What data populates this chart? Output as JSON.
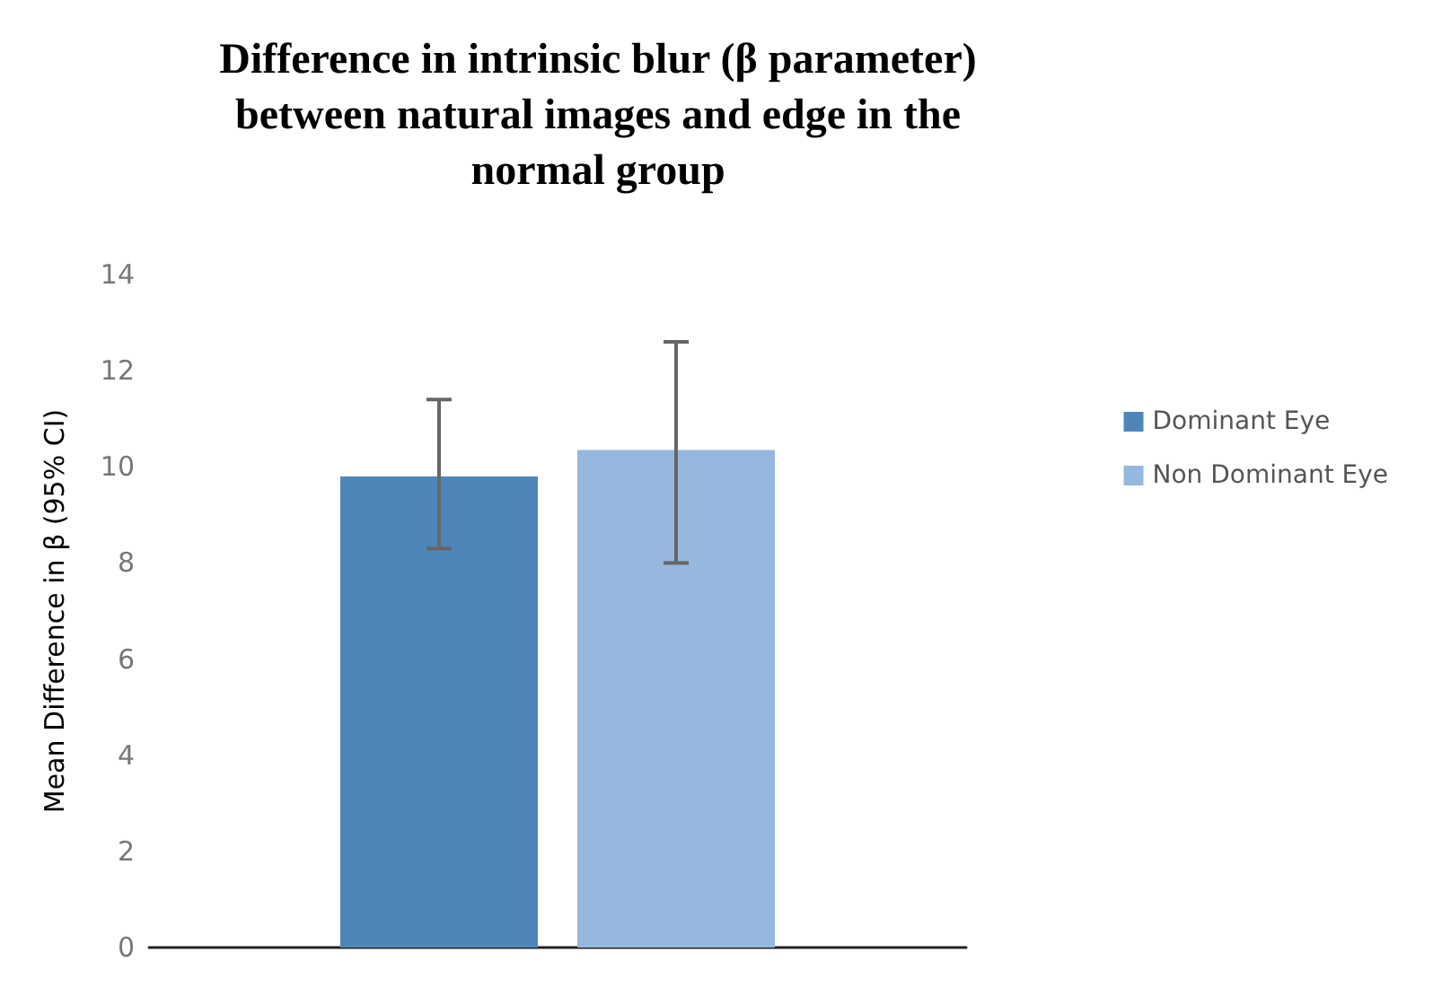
{
  "chart_data": {
    "type": "bar",
    "title": "Difference in intrinsic blur (β parameter)\nbetween natural images and edge in the\nnormal group",
    "ylabel": "Mean Difference in β (95% CI)",
    "categories": [
      null
    ],
    "series": [
      {
        "name": "Dominant Eye",
        "color": "#4f86ba",
        "values": [
          9.8
        ],
        "errors": [
          [
            8.3,
            11.4
          ]
        ]
      },
      {
        "name": "Non Dominant Eye",
        "color": "#97b8de",
        "values": [
          10.35
        ],
        "errors": [
          [
            8.0,
            12.6
          ]
        ]
      }
    ],
    "ylim": [
      0,
      14
    ],
    "yticks": [
      0,
      2,
      4,
      6,
      8,
      10,
      12,
      14
    ],
    "grid": false,
    "legend": "right"
  }
}
